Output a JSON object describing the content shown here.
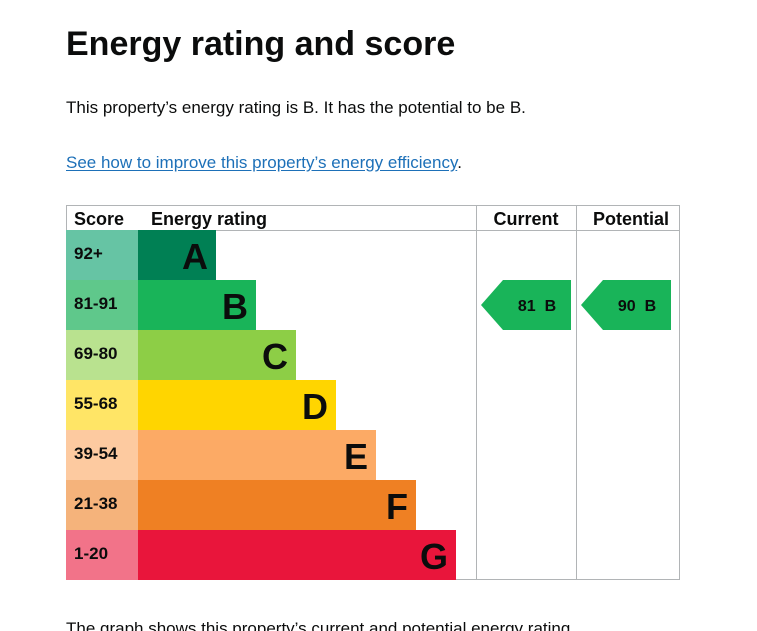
{
  "page": {
    "title": "Energy rating and score",
    "intro": "This property’s energy rating is B. It has the potential to be B.",
    "improve_link": "See how to improve this property’s energy efficiency",
    "improve_suffix": ".",
    "footer_text": "The graph shows this property’s current and potential energy rating."
  },
  "chart": {
    "headers": {
      "score": "Score",
      "energy_rating": "Energy rating",
      "current": "Current",
      "potential": "Potential"
    },
    "bands": [
      {
        "score": "92+",
        "letter": "A",
        "bar_color": "#008054",
        "score_color": "#66c4a4",
        "length": 1
      },
      {
        "score": "81-91",
        "letter": "B",
        "bar_color": "#19b459",
        "score_color": "#5fc88b",
        "length": 2
      },
      {
        "score": "69-80",
        "letter": "C",
        "bar_color": "#8dce46",
        "score_color": "#b9e28f",
        "length": 3
      },
      {
        "score": "55-68",
        "letter": "D",
        "bar_color": "#ffd500",
        "score_color": "#ffe566",
        "length": 4
      },
      {
        "score": "39-54",
        "letter": "E",
        "bar_color": "#fcaa65",
        "score_color": "#fdcaa0",
        "length": 5
      },
      {
        "score": "21-38",
        "letter": "F",
        "bar_color": "#ef8023",
        "score_color": "#f5b37b",
        "length": 6
      },
      {
        "score": "1-20",
        "letter": "G",
        "bar_color": "#e9153b",
        "score_color": "#f27389",
        "length": 7
      }
    ],
    "current": {
      "text": "81  B",
      "band_index": 1,
      "color": "#19b459"
    },
    "potential": {
      "text": "90  B",
      "band_index": 1,
      "color": "#19b459"
    }
  }
}
